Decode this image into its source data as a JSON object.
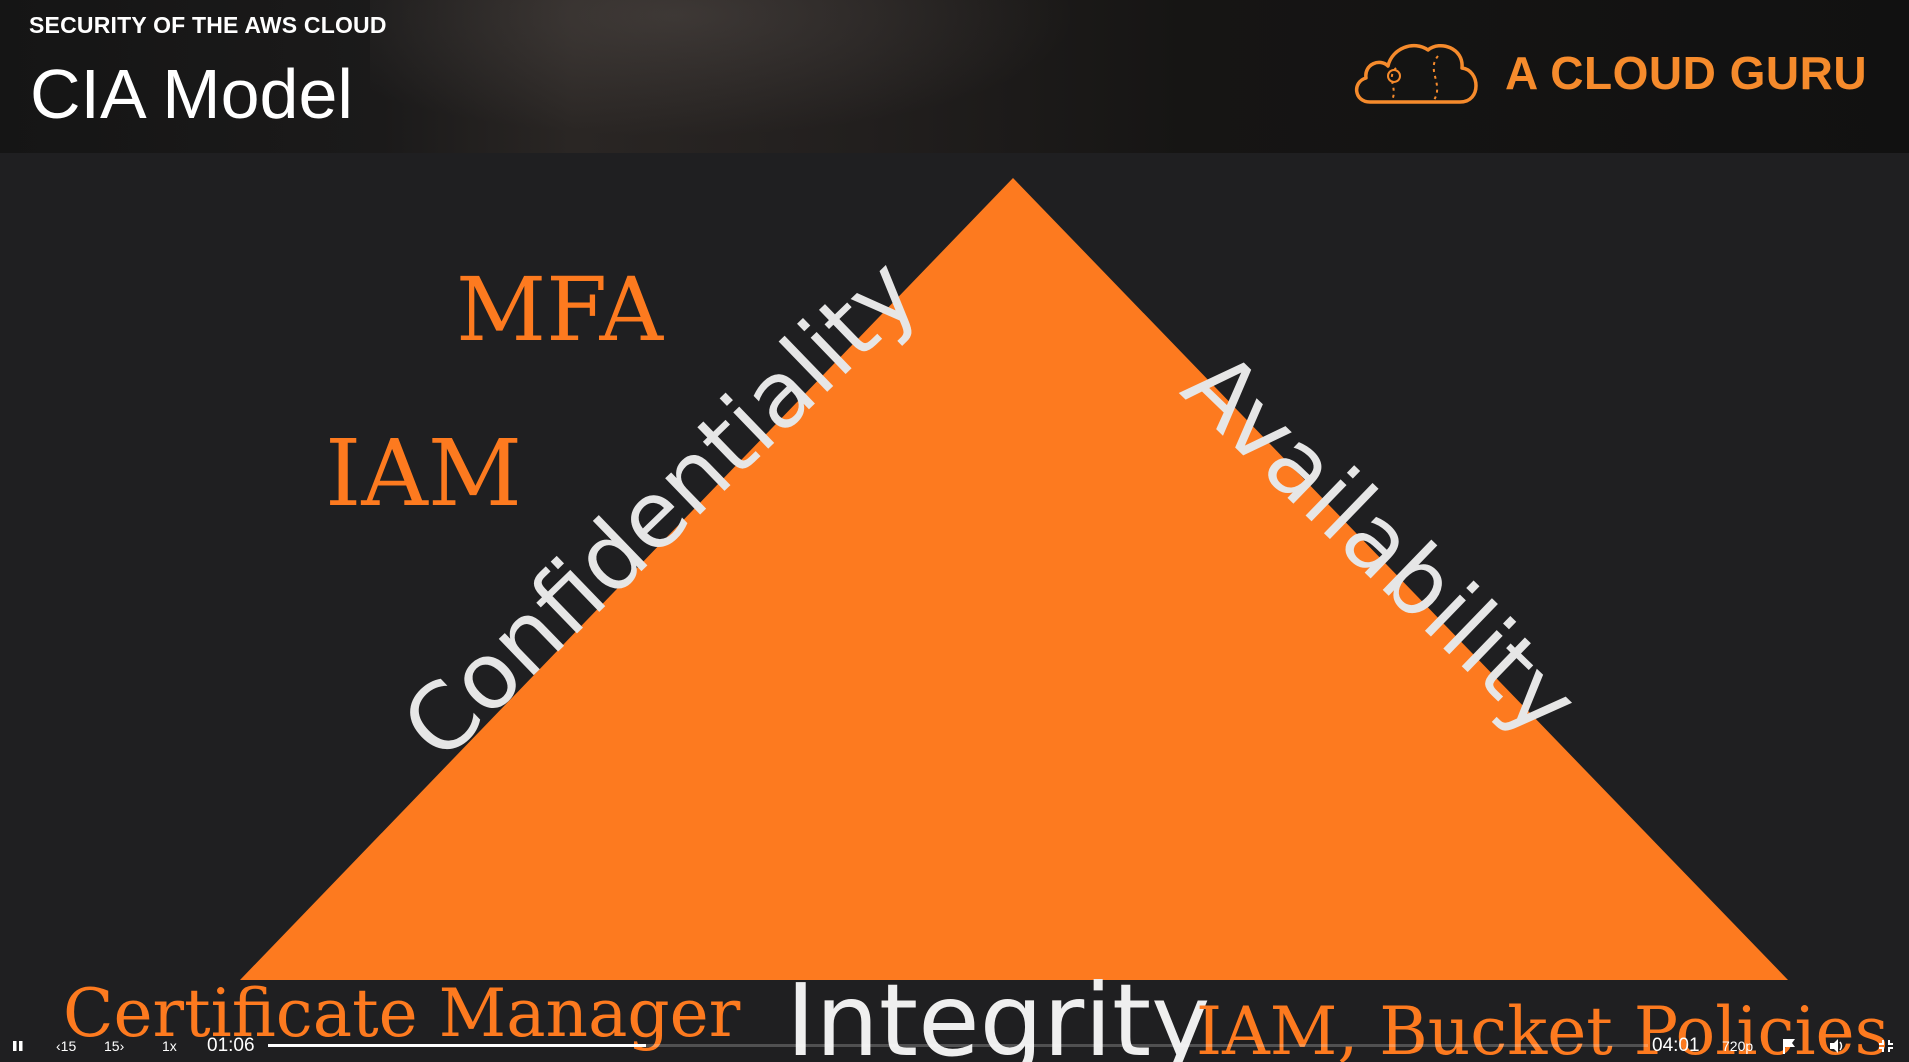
{
  "header": {
    "course_title": "SECURITY OF THE AWS CLOUD",
    "slide_title": "CIA Model",
    "brand": "A CLOUD GURU",
    "brand_color": "#f68b2c"
  },
  "slide": {
    "accent_color": "#fd7a1f",
    "labels": {
      "confidentiality": "Confidentiality",
      "availability": "Availability",
      "integrity": "Integrity"
    },
    "confidentiality_services": [
      "MFA",
      "IAM"
    ],
    "integrity_services": [
      "Certificate Manager",
      "IAM, Bucket Policies"
    ]
  },
  "player": {
    "rewind_label": "15",
    "forward_label": "15",
    "speed": "1x",
    "current_time": "01:06",
    "duration": "04:01",
    "progress": 0.274,
    "quality": "720p",
    "icons": [
      "pause-icon",
      "rewind-15-icon",
      "forward-15-icon",
      "flag-icon",
      "volume-icon",
      "exit-fullscreen-icon"
    ]
  }
}
